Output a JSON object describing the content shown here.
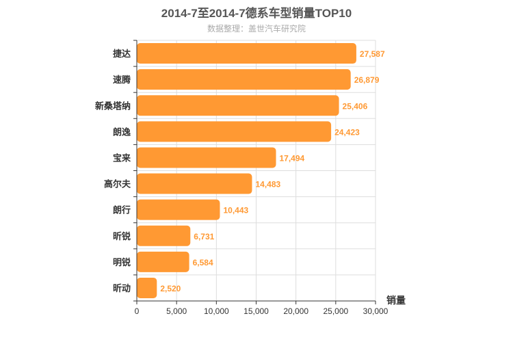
{
  "chart_data": {
    "type": "bar",
    "orientation": "horizontal",
    "title": "2014-7至2014-7德系车型销量TOP10",
    "subtitle": "数据整理：盖世汽车研究院",
    "categories": [
      "捷达",
      "速腾",
      "新桑塔纳",
      "朗逸",
      "宝来",
      "高尔夫",
      "朗行",
      "昕锐",
      "明锐",
      "昕动"
    ],
    "values": [
      27587,
      26879,
      25406,
      24423,
      17494,
      14483,
      10443,
      6731,
      6584,
      2520
    ],
    "value_labels": [
      "27,587",
      "26,879",
      "25,406",
      "24,423",
      "17,494",
      "14,483",
      "10,443",
      "6,731",
      "6,584",
      "2,520"
    ],
    "xlabel": "销量",
    "ylabel": "",
    "xlim": [
      0,
      30000
    ],
    "xticks": [
      0,
      5000,
      10000,
      15000,
      20000,
      25000,
      30000
    ],
    "xtick_labels": [
      "0",
      "5,000",
      "10,000",
      "15,000",
      "20,000",
      "25,000",
      "30,000"
    ],
    "grid": true,
    "legend": "none",
    "bar_color": "#ff9933",
    "label_color": "#ff9933"
  }
}
